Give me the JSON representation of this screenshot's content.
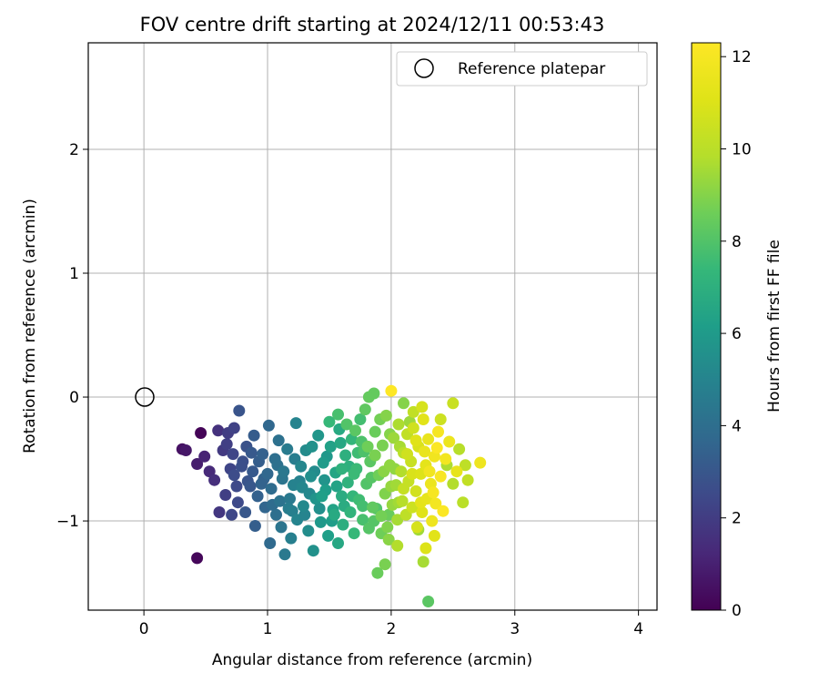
{
  "chart_data": {
    "type": "scatter",
    "title": "FOV centre drift starting at 2024/12/11 00:53:43",
    "xlabel": "Angular distance from reference (arcmin)",
    "ylabel": "Rotation from reference (arcmin)",
    "xlim": [
      -0.45,
      4.15
    ],
    "ylim": [
      -1.72,
      2.86
    ],
    "xticks": [
      0,
      1,
      2,
      3,
      4
    ],
    "yticks": [
      -1,
      0,
      1,
      2
    ],
    "grid": true,
    "colormap": "viridis",
    "colorbar": {
      "label": "Hours from first FF file",
      "min": 0,
      "max": 12.3,
      "ticks": [
        0,
        2,
        4,
        6,
        8,
        10,
        12
      ]
    },
    "legend": {
      "location": "top-right",
      "entries": [
        {
          "label": "Reference platepar",
          "marker": "open-circle",
          "x": 0,
          "y": 0
        }
      ]
    },
    "reference_point": {
      "x": 0,
      "y": 0
    },
    "series": [
      {
        "fields": [
          "x",
          "y",
          "hours"
        ],
        "points": [
          [
            0.46,
            -0.29,
            0.1
          ],
          [
            0.43,
            -1.3,
            0.2
          ],
          [
            0.31,
            -0.42,
            0.5
          ],
          [
            0.34,
            -0.43,
            0.7
          ],
          [
            0.43,
            -0.54,
            0.9
          ],
          [
            0.49,
            -0.48,
            1.1
          ],
          [
            0.53,
            -0.6,
            1.3
          ],
          [
            0.57,
            -0.67,
            1.5
          ],
          [
            0.6,
            -0.27,
            1.6
          ],
          [
            0.61,
            -0.93,
            1.8
          ],
          [
            0.64,
            -0.43,
            1.9
          ],
          [
            0.68,
            -0.29,
            2.0
          ],
          [
            0.66,
            -0.79,
            2.1
          ],
          [
            0.73,
            -0.25,
            2.2
          ],
          [
            0.72,
            -0.46,
            2.3
          ],
          [
            0.71,
            -0.95,
            2.4
          ],
          [
            0.76,
            -0.85,
            2.5
          ],
          [
            0.73,
            -0.63,
            2.6
          ],
          [
            0.8,
            -0.52,
            2.7
          ],
          [
            0.83,
            -0.4,
            2.8
          ],
          [
            0.77,
            -0.11,
            2.9
          ],
          [
            0.86,
            -0.72,
            3.0
          ],
          [
            0.82,
            -0.93,
            3.0
          ],
          [
            0.88,
            -0.6,
            3.1
          ],
          [
            0.89,
            -0.31,
            3.2
          ],
          [
            0.9,
            -1.04,
            3.3
          ],
          [
            0.92,
            -0.8,
            3.4
          ],
          [
            0.96,
            -0.46,
            3.4
          ],
          [
            0.97,
            -0.66,
            3.5
          ],
          [
            0.98,
            -0.89,
            3.6
          ],
          [
            1.01,
            -0.23,
            3.7
          ],
          [
            1.02,
            -1.18,
            3.8
          ],
          [
            1.03,
            -0.74,
            3.9
          ],
          [
            1.06,
            -0.5,
            4.0
          ],
          [
            1.07,
            -0.95,
            4.0
          ],
          [
            1.09,
            -0.35,
            4.1
          ],
          [
            1.1,
            -0.84,
            4.2
          ],
          [
            1.11,
            -1.05,
            4.3
          ],
          [
            1.13,
            -0.6,
            4.4
          ],
          [
            1.14,
            -1.27,
            4.5
          ],
          [
            1.16,
            -0.42,
            4.6
          ],
          [
            1.17,
            -0.9,
            4.7
          ],
          [
            1.19,
            -1.14,
            4.8
          ],
          [
            1.21,
            -0.71,
            4.9
          ],
          [
            1.23,
            -0.21,
            5.0
          ],
          [
            1.24,
            -0.99,
            5.0
          ],
          [
            1.27,
            -0.56,
            5.1
          ],
          [
            1.29,
            -0.88,
            5.2
          ],
          [
            1.31,
            -0.43,
            5.3
          ],
          [
            1.33,
            -1.08,
            5.4
          ],
          [
            1.35,
            -0.64,
            5.5
          ],
          [
            1.37,
            -1.24,
            5.6
          ],
          [
            1.39,
            -0.82,
            5.7
          ],
          [
            1.41,
            -0.31,
            5.8
          ],
          [
            1.43,
            -1.01,
            5.9
          ],
          [
            1.45,
            -0.53,
            6.0
          ],
          [
            1.47,
            -0.75,
            6.1
          ],
          [
            1.49,
            -1.12,
            6.2
          ],
          [
            1.51,
            -0.4,
            6.3
          ],
          [
            1.53,
            -0.91,
            6.4
          ],
          [
            1.55,
            -0.61,
            6.5
          ],
          [
            1.57,
            -1.18,
            6.6
          ],
          [
            1.58,
            -0.26,
            6.7
          ],
          [
            1.6,
            -0.8,
            6.8
          ],
          [
            1.61,
            -1.03,
            6.9
          ],
          [
            1.63,
            -0.47,
            7.0
          ],
          [
            1.65,
            -0.69,
            7.1
          ],
          [
            1.67,
            -0.93,
            7.2
          ],
          [
            1.68,
            -0.34,
            7.3
          ],
          [
            1.7,
            -1.1,
            7.4
          ],
          [
            1.72,
            -0.58,
            7.5
          ],
          [
            1.74,
            -0.83,
            7.6
          ],
          [
            1.75,
            -0.18,
            7.7
          ],
          [
            1.77,
            -0.99,
            7.8
          ],
          [
            1.78,
            -0.44,
            7.9
          ],
          [
            1.8,
            -0.7,
            8.0
          ],
          [
            1.82,
            -1.06,
            8.1
          ],
          [
            1.83,
            -0.52,
            8.2
          ],
          [
            1.85,
            -0.89,
            8.3
          ],
          [
            1.86,
            0.03,
            8.4
          ],
          [
            1.87,
            -0.28,
            8.5
          ],
          [
            1.89,
            -1.42,
            8.5
          ],
          [
            1.9,
            -0.63,
            8.6
          ],
          [
            1.92,
            -0.96,
            8.7
          ],
          [
            1.93,
            -0.39,
            8.8
          ],
          [
            1.95,
            -0.78,
            8.9
          ],
          [
            1.96,
            -0.15,
            9.0
          ],
          [
            1.98,
            -1.15,
            9.1
          ],
          [
            1.99,
            -0.55,
            9.2
          ],
          [
            2.01,
            -0.87,
            9.3
          ],
          [
            2.02,
            -0.33,
            9.4
          ],
          [
            2.04,
            -0.71,
            9.5
          ],
          [
            2.05,
            -0.99,
            9.6
          ],
          [
            2.06,
            -0.22,
            9.7
          ],
          [
            2.08,
            -0.6,
            9.8
          ],
          [
            2.09,
            -0.84,
            9.9
          ],
          [
            2.1,
            -0.45,
            10.0
          ],
          [
            2.12,
            -0.95,
            10.1
          ],
          [
            2.13,
            -0.3,
            10.2
          ],
          [
            2.14,
            -0.68,
            10.3
          ],
          [
            2.16,
            -0.52,
            10.4
          ],
          [
            2.17,
            -0.89,
            10.5
          ],
          [
            2.18,
            -0.25,
            10.6
          ],
          [
            2.2,
            -0.76,
            10.7
          ],
          [
            2.21,
            -1.05,
            10.8
          ],
          [
            2.22,
            -0.4,
            10.9
          ],
          [
            2.24,
            -0.62,
            11.0
          ],
          [
            2.25,
            -0.93,
            11.1
          ],
          [
            2.26,
            -0.18,
            11.2
          ],
          [
            2.28,
            -0.55,
            11.3
          ],
          [
            2.29,
            -0.82,
            11.4
          ],
          [
            2.3,
            -0.34,
            11.5
          ],
          [
            2.32,
            -0.7,
            11.6
          ],
          [
            2.33,
            -1.0,
            11.7
          ],
          [
            2.35,
            -0.48,
            11.8
          ],
          [
            2.36,
            -0.86,
            11.9
          ],
          [
            2.38,
            -0.28,
            12.0
          ],
          [
            2.4,
            -0.64,
            12.1
          ],
          [
            2.42,
            -0.92,
            12.2
          ],
          [
            2.0,
            0.05,
            12.3
          ],
          [
            1.82,
            0.0,
            8.4
          ],
          [
            1.95,
            -1.35,
            8.8
          ],
          [
            1.97,
            -1.05,
            8.9
          ],
          [
            2.1,
            -0.05,
            9.0
          ],
          [
            2.15,
            -0.2,
            9.4
          ],
          [
            2.22,
            -1.07,
            9.5
          ],
          [
            2.26,
            -1.33,
            9.6
          ],
          [
            2.45,
            -0.55,
            9.7
          ],
          [
            2.5,
            -0.7,
            9.8
          ],
          [
            2.55,
            -0.42,
            9.9
          ],
          [
            2.58,
            -0.85,
            10.0
          ],
          [
            2.6,
            -0.55,
            10.1
          ],
          [
            2.62,
            -0.67,
            10.2
          ],
          [
            2.5,
            -0.05,
            10.4
          ],
          [
            2.4,
            -0.18,
            10.5
          ],
          [
            2.3,
            -1.65,
            8.2
          ],
          [
            1.88,
            -0.9,
            8.0
          ],
          [
            1.84,
            -0.65,
            8.1
          ],
          [
            1.76,
            -0.36,
            7.9
          ],
          [
            2.05,
            -1.2,
            9.8
          ],
          [
            2.1,
            -0.74,
            10.3
          ],
          [
            2.13,
            -0.46,
            10.6
          ],
          [
            2.17,
            -0.62,
            10.9
          ],
          [
            2.2,
            -0.35,
            11.1
          ],
          [
            2.24,
            -0.85,
            11.3
          ],
          [
            2.27,
            -0.44,
            11.5
          ],
          [
            2.31,
            -0.6,
            11.8
          ],
          [
            2.34,
            -0.77,
            12.0
          ],
          [
            2.37,
            -0.41,
            12.2
          ],
          [
            2.44,
            -0.5,
            11.9
          ],
          [
            2.47,
            -0.36,
            11.6
          ],
          [
            2.53,
            -0.6,
            11.4
          ],
          [
            2.72,
            -0.53,
            11.7
          ],
          [
            2.35,
            -1.12,
            11.2
          ],
          [
            2.28,
            -1.22,
            11.0
          ],
          [
            2.25,
            -0.08,
            10.8
          ],
          [
            2.18,
            -0.12,
            10.2
          ],
          [
            2.07,
            -0.4,
            9.6
          ],
          [
            2.03,
            -0.58,
            9.2
          ],
          [
            1.99,
            -0.3,
            9.0
          ],
          [
            1.91,
            -0.18,
            8.7
          ],
          [
            1.79,
            -0.1,
            8.3
          ],
          [
            1.73,
            -0.45,
            7.6
          ],
          [
            1.69,
            -0.8,
            7.3
          ],
          [
            1.66,
            -0.56,
            7.0
          ],
          [
            1.62,
            -0.88,
            6.8
          ],
          [
            1.59,
            -0.37,
            6.6
          ],
          [
            1.56,
            -0.72,
            6.4
          ],
          [
            1.52,
            -1.0,
            6.1
          ],
          [
            1.48,
            -0.48,
            5.9
          ],
          [
            1.46,
            -0.67,
            5.7
          ],
          [
            1.42,
            -0.9,
            5.5
          ],
          [
            1.38,
            -0.6,
            5.3
          ],
          [
            1.34,
            -0.78,
            5.2
          ],
          [
            1.3,
            -0.95,
            5.0
          ],
          [
            1.26,
            -0.68,
            4.9
          ],
          [
            1.22,
            -0.5,
            4.7
          ],
          [
            1.18,
            -0.82,
            4.5
          ],
          [
            1.12,
            -0.66,
            4.3
          ],
          [
            1.08,
            -0.55,
            4.1
          ],
          [
            1.04,
            -0.87,
            3.9
          ],
          [
            1.0,
            -0.62,
            3.7
          ],
          [
            0.95,
            -0.7,
            3.5
          ],
          [
            0.93,
            -0.52,
            3.3
          ],
          [
            0.87,
            -0.45,
            3.1
          ],
          [
            0.84,
            -0.68,
            2.9
          ],
          [
            0.79,
            -0.56,
            2.7
          ],
          [
            0.75,
            -0.72,
            2.5
          ],
          [
            0.7,
            -0.58,
            2.3
          ],
          [
            0.67,
            -0.38,
            2.1
          ],
          [
            1.5,
            -0.2,
            7.4
          ],
          [
            1.57,
            -0.14,
            7.8
          ],
          [
            1.64,
            -0.22,
            8.0
          ],
          [
            1.71,
            -0.27,
            8.2
          ],
          [
            1.81,
            -0.4,
            8.6
          ],
          [
            1.87,
            -0.47,
            8.8
          ],
          [
            1.94,
            -0.6,
            9.1
          ],
          [
            2.0,
            -0.72,
            9.3
          ],
          [
            2.06,
            -0.85,
            9.5
          ],
          [
            1.98,
            -0.95,
            8.5
          ],
          [
            1.92,
            -1.1,
            8.6
          ],
          [
            1.86,
            -1.0,
            8.1
          ],
          [
            1.77,
            -0.88,
            7.7
          ],
          [
            1.7,
            -0.62,
            7.5
          ],
          [
            1.6,
            -0.58,
            7.1
          ],
          [
            1.54,
            -0.95,
            6.7
          ],
          [
            1.44,
            -0.8,
            6.2
          ],
          [
            1.36,
            -0.4,
            5.6
          ],
          [
            1.28,
            -0.73,
            5.1
          ],
          [
            1.2,
            -0.92,
            4.8
          ]
        ]
      }
    ]
  }
}
